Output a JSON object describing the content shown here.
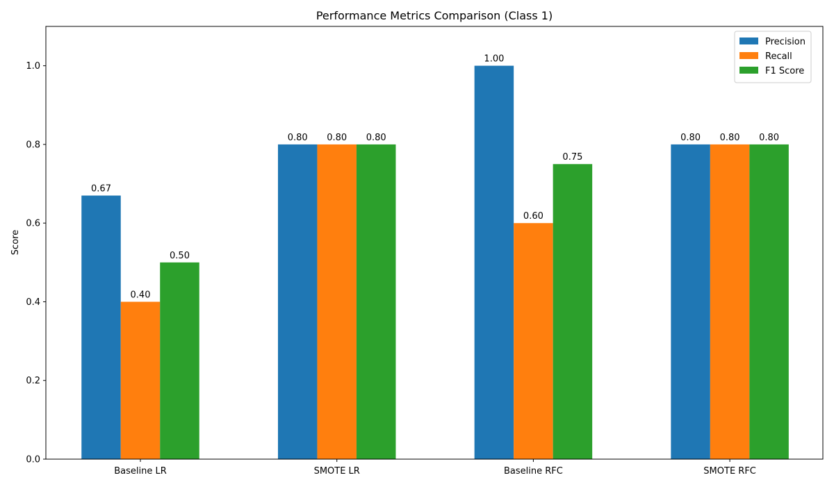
{
  "chart_data": {
    "type": "bar",
    "title": "Performance Metrics Comparison (Class 1)",
    "xlabel": "",
    "ylabel": "Score",
    "categories": [
      "Baseline LR",
      "SMOTE LR",
      "Baseline RFC",
      "SMOTE RFC"
    ],
    "series": [
      {
        "name": "Precision",
        "color": "#1f77b4",
        "values": [
          0.67,
          0.8,
          1.0,
          0.8
        ],
        "labels": [
          "0.67",
          "0.80",
          "1.00",
          "0.80"
        ]
      },
      {
        "name": "Recall",
        "color": "#ff7f0e",
        "values": [
          0.4,
          0.8,
          0.6,
          0.8
        ],
        "labels": [
          "0.40",
          "0.80",
          "0.60",
          "0.80"
        ]
      },
      {
        "name": "F1 Score",
        "color": "#2ca02c",
        "values": [
          0.5,
          0.8,
          0.75,
          0.8
        ],
        "labels": [
          "0.50",
          "0.80",
          "0.75",
          "0.80"
        ]
      }
    ],
    "ylim": [
      0,
      1.1
    ],
    "yticks": [
      0.0,
      0.2,
      0.4,
      0.6,
      0.8,
      1.0
    ],
    "ytick_labels": [
      "0.0",
      "0.2",
      "0.4",
      "0.6",
      "0.8",
      "1.0"
    ],
    "grid": false,
    "legend_position": "top-right"
  }
}
